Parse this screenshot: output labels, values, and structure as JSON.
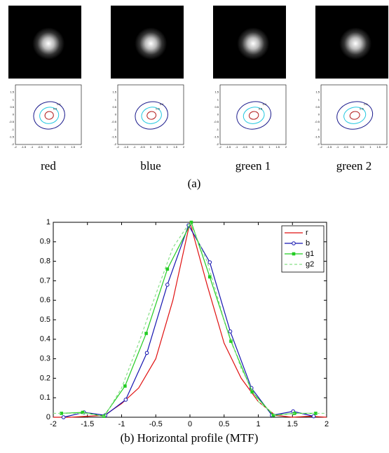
{
  "panel_a": {
    "caption": "(a)",
    "contour_xlim": [
      -2,
      2
    ],
    "contour_ylim": [
      -2,
      2
    ],
    "contour_xticks": [
      -2,
      -1.5,
      -1,
      -0.5,
      0,
      0.5,
      1,
      1.5,
      2
    ],
    "contour_yticks": [
      -2,
      -1.5,
      -1,
      -0.5,
      0,
      0.5,
      1,
      1.5
    ],
    "contour_levels": [
      0.1,
      0.5,
      0.9
    ],
    "contour_colors": [
      "#1a1a8c",
      "#22c8e0",
      "#b01818"
    ],
    "panels": [
      {
        "label": "red"
      },
      {
        "label": "blue"
      },
      {
        "label": "green 1"
      },
      {
        "label": "green 2"
      }
    ]
  },
  "chart_data": {
    "type": "line",
    "caption": "(b) Horizontal profile (MTF)",
    "xlim": [
      -2,
      2
    ],
    "ylim": [
      0,
      1
    ],
    "xticks": [
      -2,
      -1.5,
      -1,
      -0.5,
      0,
      0.5,
      1,
      1.5,
      2
    ],
    "yticks": [
      0,
      0.1,
      0.2,
      0.3,
      0.4,
      0.5,
      0.6,
      0.7,
      0.8,
      0.9,
      1
    ],
    "legend": "upper right",
    "series": [
      {
        "name": "r",
        "color": "#e01010",
        "marker": "none",
        "dash": false,
        "x": [
          -2,
          -1.75,
          -1.5,
          -1.25,
          -1,
          -0.75,
          -0.5,
          -0.25,
          0,
          0.25,
          0.5,
          0.75,
          1,
          1.25,
          1.5,
          1.75,
          2
        ],
        "values": [
          0,
          0,
          0.005,
          0.01,
          0.07,
          0.15,
          0.3,
          0.6,
          1,
          0.68,
          0.38,
          0.2,
          0.08,
          0.01,
          0,
          0.005,
          0
        ]
      },
      {
        "name": "b",
        "color": "#1515b0",
        "marker": "circle",
        "dash": false,
        "x": [
          -1.85,
          -1.55,
          -1.24,
          -0.94,
          -0.63,
          -0.33,
          -0.02,
          0.29,
          0.59,
          0.9,
          1.2,
          1.51,
          1.81
        ],
        "values": [
          0,
          0.025,
          0.01,
          0.09,
          0.33,
          0.68,
          0.985,
          0.795,
          0.44,
          0.15,
          0.01,
          0.03,
          0.005
        ]
      },
      {
        "name": "g1",
        "color": "#22cc22",
        "marker": "square",
        "dash": false,
        "x": [
          -1.88,
          -1.57,
          -1.26,
          -0.95,
          -0.64,
          -0.33,
          0.02,
          0.29,
          0.6,
          0.91,
          1.22,
          1.53,
          1.84
        ],
        "values": [
          0.02,
          0.025,
          0.005,
          0.16,
          0.43,
          0.76,
          1,
          0.72,
          0.39,
          0.13,
          0.01,
          0.02,
          0.02
        ]
      },
      {
        "name": "g2",
        "color": "#88e088",
        "marker": "none",
        "dash": true,
        "x": [
          -2,
          -1.75,
          -1.5,
          -1.25,
          -1,
          -0.75,
          -0.5,
          -0.25,
          0,
          0.25,
          0.5,
          0.75,
          1,
          1.25,
          1.5,
          1.75,
          2
        ],
        "values": [
          0.02,
          0.02,
          0.02,
          0.005,
          0.15,
          0.38,
          0.63,
          0.87,
          1,
          0.8,
          0.5,
          0.25,
          0.08,
          0.01,
          0.02,
          0.02,
          0.02
        ]
      }
    ]
  }
}
